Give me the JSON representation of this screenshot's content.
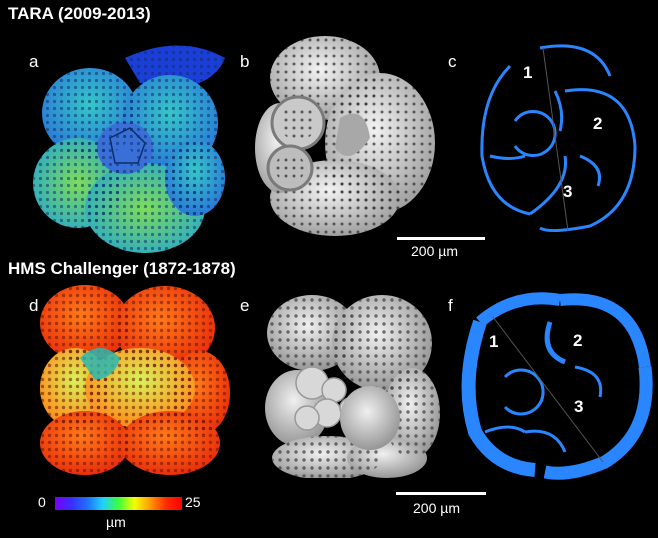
{
  "titles": {
    "top": "TARA (2009-2013)",
    "bottom": "HMS Challenger (1872-1878)"
  },
  "panels": {
    "a": "a",
    "b": "b",
    "c": "c",
    "d": "d",
    "e": "e",
    "f": "f"
  },
  "chambers_c": [
    "1",
    "2",
    "3"
  ],
  "chambers_f": [
    "1",
    "2",
    "3"
  ],
  "scalebar_top": "200 µm",
  "scalebar_bottom": "200 µm",
  "colorbar": {
    "min": "0",
    "max": "25",
    "unit": "µm"
  },
  "colors": {
    "section_blue": "#2a86ff",
    "background": "#000000"
  }
}
